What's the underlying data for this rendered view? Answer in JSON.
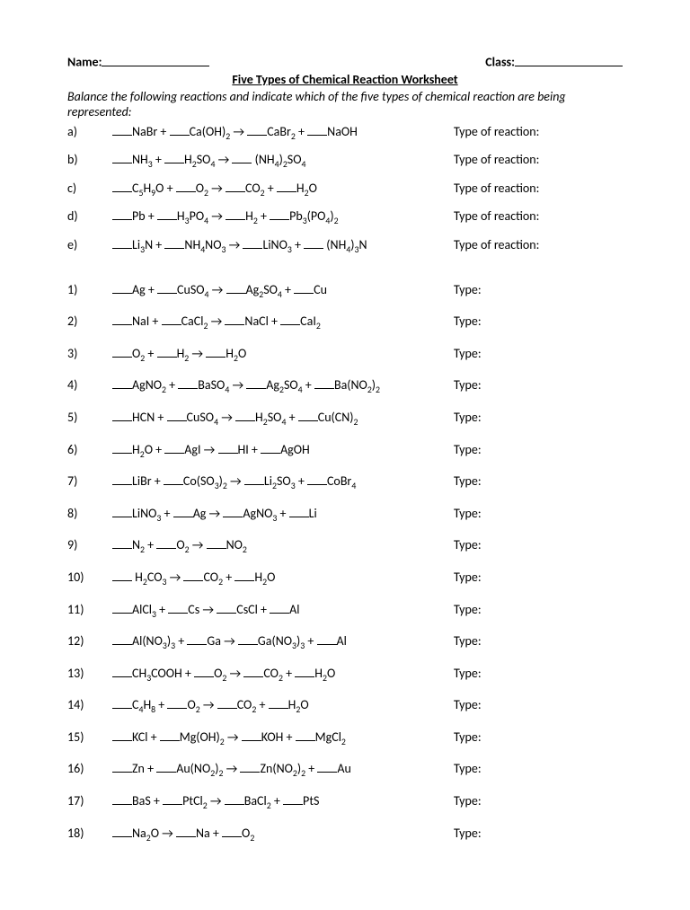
{
  "header": {
    "name_label": "Name:",
    "class_label": "Class:"
  },
  "title": "Five Types of Chemical Reaction Worksheet",
  "instructions": "Balance the following reactions and indicate which of the five types of chemical reaction are being represented:",
  "type_label_long": "Type of reaction:",
  "type_label_short": "Type:",
  "labels": {
    "a": "a)",
    "b": "b)",
    "c": "c)",
    "d": "d)",
    "e": "e)",
    "p1": "1)",
    "p2": "2)",
    "p3": "3)",
    "p4": "4)",
    "p5": "5)",
    "p6": "6)",
    "p7": "7)",
    "p8": "8)",
    "p9": "9)",
    "p10": "10)",
    "p11": "11)",
    "p12": "12)",
    "p13": "13)",
    "p14": "14)",
    "p15": "15)",
    "p16": "16)",
    "p17": "17)",
    "p18": "18)"
  },
  "equations": {
    "a": [
      [
        "NaBr",
        " + "
      ],
      [
        "Ca(OH)",
        {
          "s": "2"
        },
        " → "
      ],
      [
        "CaBr",
        {
          "s": "2"
        },
        " + "
      ],
      [
        "NaOH"
      ]
    ],
    "b": [
      [
        "NH",
        {
          "s": "3"
        },
        " + "
      ],
      [
        "H",
        {
          "s": "2"
        },
        "SO",
        {
          "s": "4"
        },
        " → "
      ],
      [
        " (NH",
        {
          "s": "4"
        },
        ")",
        {
          "s": "2"
        },
        "SO",
        {
          "s": "4"
        }
      ]
    ],
    "c": [
      [
        "C",
        {
          "s": "5"
        },
        "H",
        {
          "s": "9"
        },
        "O + "
      ],
      [
        "O",
        {
          "s": "2"
        },
        " → "
      ],
      [
        "CO",
        {
          "s": "2"
        },
        " + "
      ],
      [
        "H",
        {
          "s": "2"
        },
        "O"
      ]
    ],
    "d": [
      [
        "Pb + "
      ],
      [
        "H",
        {
          "s": "3"
        },
        "PO",
        {
          "s": "4"
        },
        " → "
      ],
      [
        "H",
        {
          "s": "2"
        },
        " + "
      ],
      [
        "Pb",
        {
          "s": "3"
        },
        "(PO",
        {
          "s": "4"
        },
        ")",
        {
          "s": "2"
        }
      ]
    ],
    "e": [
      [
        "Li",
        {
          "s": "3"
        },
        "N + "
      ],
      [
        "NH",
        {
          "s": "4"
        },
        "NO",
        {
          "s": "3"
        },
        " → "
      ],
      [
        "LiNO",
        {
          "s": "3"
        },
        " + "
      ],
      [
        " (NH",
        {
          "s": "4"
        },
        ")",
        {
          "s": "3"
        },
        "N"
      ]
    ],
    "p1": [
      [
        "Ag + "
      ],
      [
        "CuSO",
        {
          "s": "4"
        },
        " → "
      ],
      [
        "Ag",
        {
          "s": "2"
        },
        "SO",
        {
          "s": "4"
        },
        " + "
      ],
      [
        "Cu"
      ]
    ],
    "p2": [
      [
        "NaI + "
      ],
      [
        "CaCl",
        {
          "s": "2"
        },
        " → "
      ],
      [
        "NaCl + "
      ],
      [
        "CaI",
        {
          "s": "2"
        }
      ]
    ],
    "p3": [
      [
        "O",
        {
          "s": "2"
        },
        " + "
      ],
      [
        "H",
        {
          "s": "2"
        },
        " → "
      ],
      [
        "H",
        {
          "s": "2"
        },
        "O"
      ]
    ],
    "p4": [
      [
        "AgNO",
        {
          "s": "2"
        },
        " + "
      ],
      [
        "BaSO",
        {
          "s": "4"
        },
        " → "
      ],
      [
        "Ag",
        {
          "s": "2"
        },
        "SO",
        {
          "s": "4"
        },
        " + "
      ],
      [
        "Ba(NO",
        {
          "s": "2"
        },
        ")",
        {
          "s": "2"
        }
      ]
    ],
    "p5": [
      [
        "HCN + "
      ],
      [
        "CuSO",
        {
          "s": "4"
        },
        " → "
      ],
      [
        "H",
        {
          "s": "2"
        },
        "SO",
        {
          "s": "4"
        },
        " + "
      ],
      [
        "Cu(CN)",
        {
          "s": "2"
        }
      ]
    ],
    "p6": [
      [
        "H",
        {
          "s": "2"
        },
        "O + "
      ],
      [
        "AgI → "
      ],
      [
        "HI + "
      ],
      [
        "AgOH"
      ]
    ],
    "p7": [
      [
        "LiBr + "
      ],
      [
        "Co(SO",
        {
          "s": "3"
        },
        ")",
        {
          "s": "2"
        },
        " → "
      ],
      [
        "Li",
        {
          "s": "2"
        },
        "SO",
        {
          "s": "3"
        },
        " + "
      ],
      [
        "CoBr",
        {
          "s": "4"
        }
      ]
    ],
    "p8": [
      [
        "LiNO",
        {
          "s": "3"
        },
        " + "
      ],
      [
        "Ag → "
      ],
      [
        "AgNO",
        {
          "s": "3"
        },
        " + "
      ],
      [
        "Li"
      ]
    ],
    "p9": [
      [
        "N",
        {
          "s": "2"
        },
        " + "
      ],
      [
        "O",
        {
          "s": "2"
        },
        " → "
      ],
      [
        "NO",
        {
          "s": "2"
        }
      ]
    ],
    "p10": [
      [
        " H",
        {
          "s": "2"
        },
        "CO",
        {
          "s": "3"
        },
        " → "
      ],
      [
        "CO",
        {
          "s": "2"
        },
        " + "
      ],
      [
        "H",
        {
          "s": "2"
        },
        "O"
      ]
    ],
    "p11": [
      [
        "AlCl",
        {
          "s": "3"
        },
        " + "
      ],
      [
        "Cs → "
      ],
      [
        "CsCl + "
      ],
      [
        "Al"
      ]
    ],
    "p12": [
      [
        "Al(NO",
        {
          "s": "3"
        },
        ")",
        {
          "s": "3"
        },
        " + "
      ],
      [
        "Ga → "
      ],
      [
        "Ga(NO",
        {
          "s": "3"
        },
        ")",
        {
          "s": "3"
        },
        " + "
      ],
      [
        "Al"
      ]
    ],
    "p13": [
      [
        "CH",
        {
          "s": "3"
        },
        "COOH + "
      ],
      [
        "O",
        {
          "s": "2"
        },
        " → "
      ],
      [
        "CO",
        {
          "s": "2"
        },
        " + "
      ],
      [
        "H",
        {
          "s": "2"
        },
        "O"
      ]
    ],
    "p14": [
      [
        "C",
        {
          "s": "4"
        },
        "H",
        {
          "s": "8"
        },
        " + "
      ],
      [
        "O",
        {
          "s": "2"
        },
        " → "
      ],
      [
        "CO",
        {
          "s": "2"
        },
        " + "
      ],
      [
        "H",
        {
          "s": "2"
        },
        "O"
      ]
    ],
    "p15": [
      [
        "KCl + "
      ],
      [
        "Mg(OH)",
        {
          "s": "2"
        },
        " → "
      ],
      [
        "KOH + "
      ],
      [
        "MgCl",
        {
          "s": "2"
        }
      ]
    ],
    "p16": [
      [
        "Zn + "
      ],
      [
        "Au(NO",
        {
          "s": "2"
        },
        ")",
        {
          "s": "2"
        },
        " → "
      ],
      [
        "Zn(NO",
        {
          "s": "2"
        },
        ")",
        {
          "s": "2"
        },
        " + "
      ],
      [
        "Au"
      ]
    ],
    "p17": [
      [
        "BaS + "
      ],
      [
        "PtCl",
        {
          "s": "2"
        },
        " → "
      ],
      [
        "BaCl",
        {
          "s": "2"
        },
        " + "
      ],
      [
        "PtS"
      ]
    ],
    "p18": [
      [
        "Na",
        {
          "s": "2"
        },
        "O → "
      ],
      [
        "Na + "
      ],
      [
        "O",
        {
          "s": "2"
        }
      ]
    ]
  },
  "groupA": [
    "a",
    "b",
    "c",
    "d",
    "e"
  ],
  "groupB": [
    "p1",
    "p2",
    "p3",
    "p4",
    "p5",
    "p6",
    "p7",
    "p8",
    "p9",
    "p10",
    "p11",
    "p12",
    "p13",
    "p14",
    "p15",
    "p16",
    "p17",
    "p18"
  ]
}
